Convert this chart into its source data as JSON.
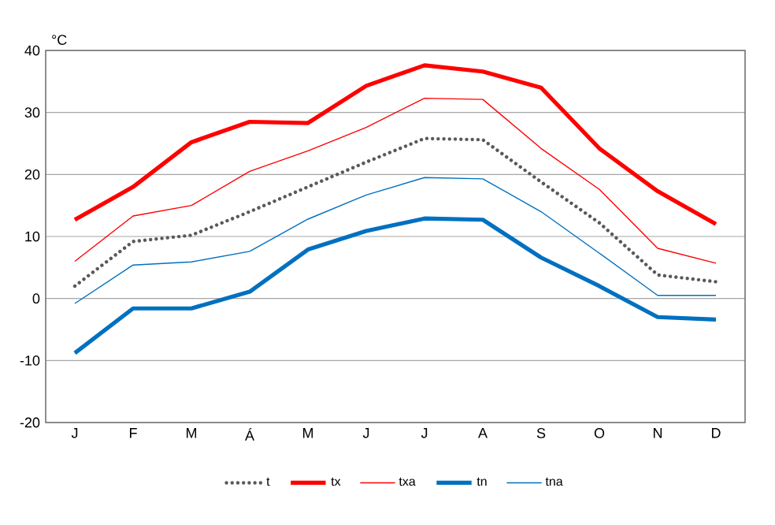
{
  "chart_data": {
    "type": "line",
    "ylabel": "°C",
    "categories": [
      "J",
      "F",
      "M",
      "Á",
      "M",
      "J",
      "J",
      "A",
      "S",
      "O",
      "N",
      "D"
    ],
    "series": [
      {
        "name": "t",
        "color": "#595959",
        "line_style": "dotted",
        "values": [
          2,
          9.2,
          10.2,
          14,
          18,
          22,
          25.8,
          25.6,
          18.8,
          12.2,
          3.8,
          2.7
        ]
      },
      {
        "name": "tx",
        "color": "#ff0000",
        "values": [
          12.7,
          18,
          25.2,
          28.5,
          28.3,
          34.3,
          37.6,
          36.6,
          34,
          24.2,
          17.3,
          12
        ]
      },
      {
        "name": "txa",
        "color": "#ff0000",
        "values": [
          6,
          13.3,
          15,
          20.5,
          23.8,
          27.6,
          32.3,
          32.1,
          24.2,
          17.6,
          8.1,
          5.7
        ]
      },
      {
        "name": "tn",
        "color": "#0070c0",
        "values": [
          -8.8,
          -1.6,
          -1.6,
          1.1,
          7.9,
          10.9,
          12.9,
          12.7,
          6.6,
          2,
          -3,
          -3.4
        ]
      },
      {
        "name": "tna",
        "color": "#0070c0",
        "values": [
          -0.8,
          5.4,
          5.9,
          7.6,
          12.8,
          16.7,
          19.5,
          19.3,
          14,
          7.3,
          0.5,
          0.5
        ]
      }
    ],
    "ylim": [
      -20,
      40
    ],
    "yticks": [
      -20,
      -10,
      0,
      10,
      20,
      30,
      40
    ],
    "grid": "y",
    "legend": "bottom",
    "marker": "none"
  }
}
